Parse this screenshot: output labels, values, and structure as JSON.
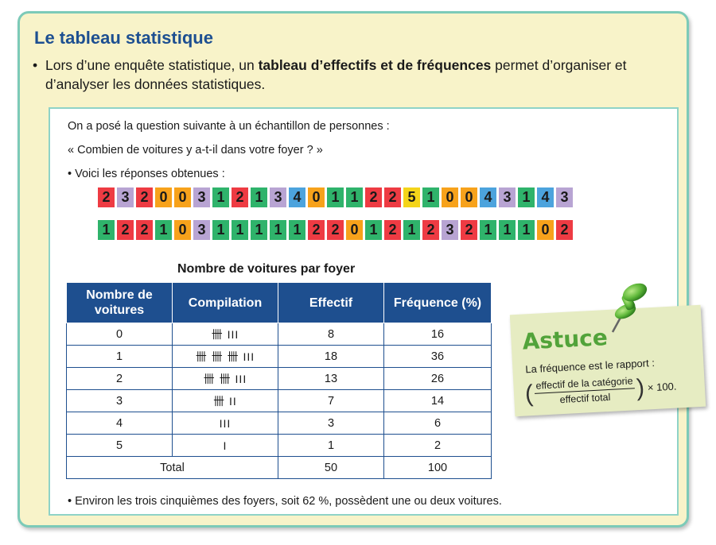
{
  "title": "Le tableau statistique",
  "intro": {
    "bullet": "•",
    "before": "Lors d’une enquête statistique, un ",
    "bold": "tableau d’effectifs et de fréquences",
    "after": " permet d’organiser et d’analyser les données statistiques."
  },
  "question_lines": [
    "On a posé la question suivante à un échantillon de personnes :",
    "« Combien de voitures y a-t-il dans votre foyer ? »",
    "• Voici les réponses obtenues :"
  ],
  "responses_row1": [
    "2",
    "3",
    "2",
    "0",
    "0",
    "3",
    "1",
    "2",
    "1",
    "3",
    "4",
    "0",
    "1",
    "1",
    "2",
    "2",
    "5",
    "1",
    "0",
    "0",
    "4",
    "3",
    "1",
    "4",
    "3"
  ],
  "responses_row2": [
    "1",
    "2",
    "2",
    "1",
    "0",
    "3",
    "1",
    "1",
    "1",
    "1",
    "1",
    "2",
    "2",
    "0",
    "1",
    "2",
    "1",
    "2",
    "3",
    "2",
    "1",
    "1",
    "1",
    "0",
    "2"
  ],
  "value_colors": {
    "0": "#f7a21b",
    "1": "#2fb36b",
    "2": "#ee3b43",
    "3": "#b8a4d3",
    "4": "#4ca3dd",
    "5": "#f4d41a"
  },
  "table": {
    "title": "Nombre de voitures par foyer",
    "headers": [
      "Nombre de voitures",
      "Compilation",
      "Effectif",
      "Fréquence (%)"
    ],
    "rows": [
      [
        "0",
        "卌 III",
        "8",
        "16"
      ],
      [
        "1",
        "卌 卌 卌 III",
        "18",
        "36"
      ],
      [
        "2",
        "卌 卌 III",
        "13",
        "26"
      ],
      [
        "3",
        "卌 II",
        "7",
        "14"
      ],
      [
        "4",
        "III",
        "3",
        "6"
      ],
      [
        "5",
        "I",
        "1",
        "2"
      ]
    ],
    "total": [
      "Total",
      "50",
      "100"
    ]
  },
  "conclusion": "• Environ les trois cinquièmes des foyers, soit 62 %, possèdent une ou deux voitures.",
  "astuce": {
    "title": "Astuce",
    "text": "La fréquence est le rapport :",
    "numerator": "effectif de la catégorie",
    "denominator": "effectif total",
    "multiplier": "× 100."
  },
  "colors": {
    "header_blue": "#1e4f8f",
    "title_blue": "#1d4f91",
    "panel_bg": "#f8f3c9",
    "panel_border": "#7ccab8",
    "astuce_green": "#52a33a"
  }
}
